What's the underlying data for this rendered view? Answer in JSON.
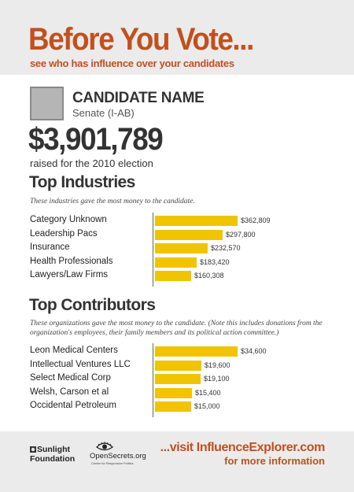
{
  "header": {
    "title": "Before You Vote...",
    "subtitle": "see who has influence over your candidates"
  },
  "candidate": {
    "name": "CANDIDATE NAME",
    "office": "Senate (I-AB)",
    "amount": "$3,901,789",
    "amount_caption": "raised for the 2010 election"
  },
  "industries": {
    "title": "Top Industries",
    "description": "These industries gave the most money to the candidate."
  },
  "contributors": {
    "title": "Top Contributors",
    "description": "These organizations gave the most money to the candidate. (Note this includes donations from the organization's employees, their family members and its political action committee.)"
  },
  "chart_data": [
    {
      "type": "bar",
      "orientation": "horizontal",
      "title": "Top Industries",
      "categories": [
        "Category Unknown",
        "Leadership Pacs",
        "Insurance",
        "Health Professionals",
        "Lawyers/Law Firms"
      ],
      "values": [
        362809,
        297800,
        232570,
        183420,
        160308
      ],
      "value_labels": [
        "$362,809",
        "$297,800",
        "$232,570",
        "$183,420",
        "$160,308"
      ],
      "bar_color": "#f0c400"
    },
    {
      "type": "bar",
      "orientation": "horizontal",
      "title": "Top Contributors",
      "categories": [
        "Leon Medical Centers",
        "Intellectual Ventures LLC",
        "Select Medical Corp",
        "Welsh, Carson et al",
        "Occidental Petroleum"
      ],
      "values": [
        34600,
        19600,
        19100,
        15400,
        15000
      ],
      "value_labels": [
        "$34,600",
        "$19,600",
        "$19,100",
        "$15,400",
        "$15,000"
      ],
      "bar_color": "#f0c400"
    }
  ],
  "footer": {
    "sunlight_line1": "Sunlight",
    "sunlight_line2": "Foundation",
    "opensecrets_name": "OpenSecrets.org",
    "opensecrets_tagline": "Center for Responsive Politics",
    "visit_line1": "...visit InfluenceExplorer.com",
    "visit_line2": "for more information"
  },
  "colors": {
    "accent": "#c2501e",
    "bar": "#f0c400",
    "text": "#333333",
    "background": "#ebebeb"
  }
}
